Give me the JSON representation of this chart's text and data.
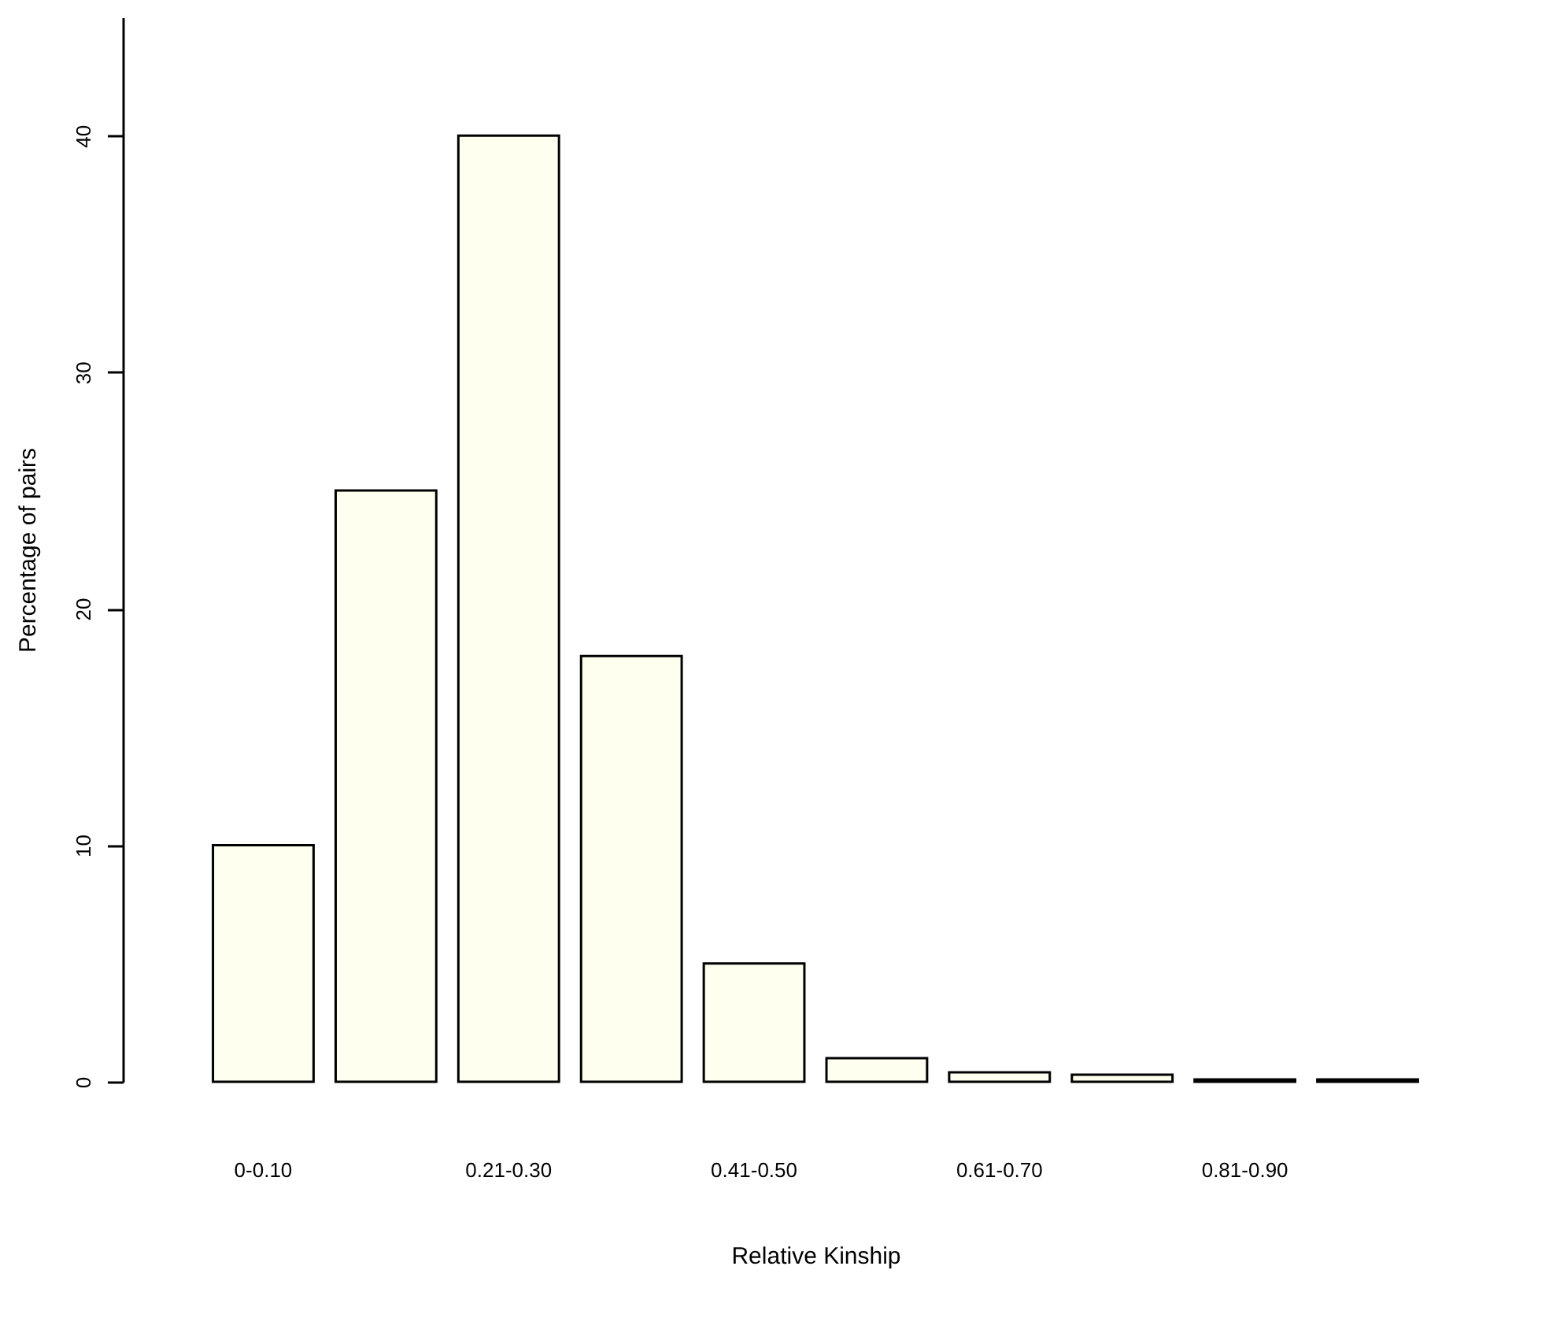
{
  "chart_data": {
    "type": "bar",
    "xlabel": "Relative Kinship",
    "ylabel": "Percentage of pairs",
    "categories": [
      "0-0.10",
      null,
      "0.21-0.30",
      null,
      "0.41-0.50",
      null,
      "0.61-0.70",
      null,
      "0.81-0.90",
      null
    ],
    "values": [
      10,
      25,
      40,
      18,
      5,
      1,
      0.4,
      0.3,
      0.1,
      0.1
    ],
    "color": "#fffff0",
    "ylim": [
      0,
      45
    ],
    "yticks": [
      0,
      10,
      20,
      30,
      40
    ],
    "grid": false
  }
}
